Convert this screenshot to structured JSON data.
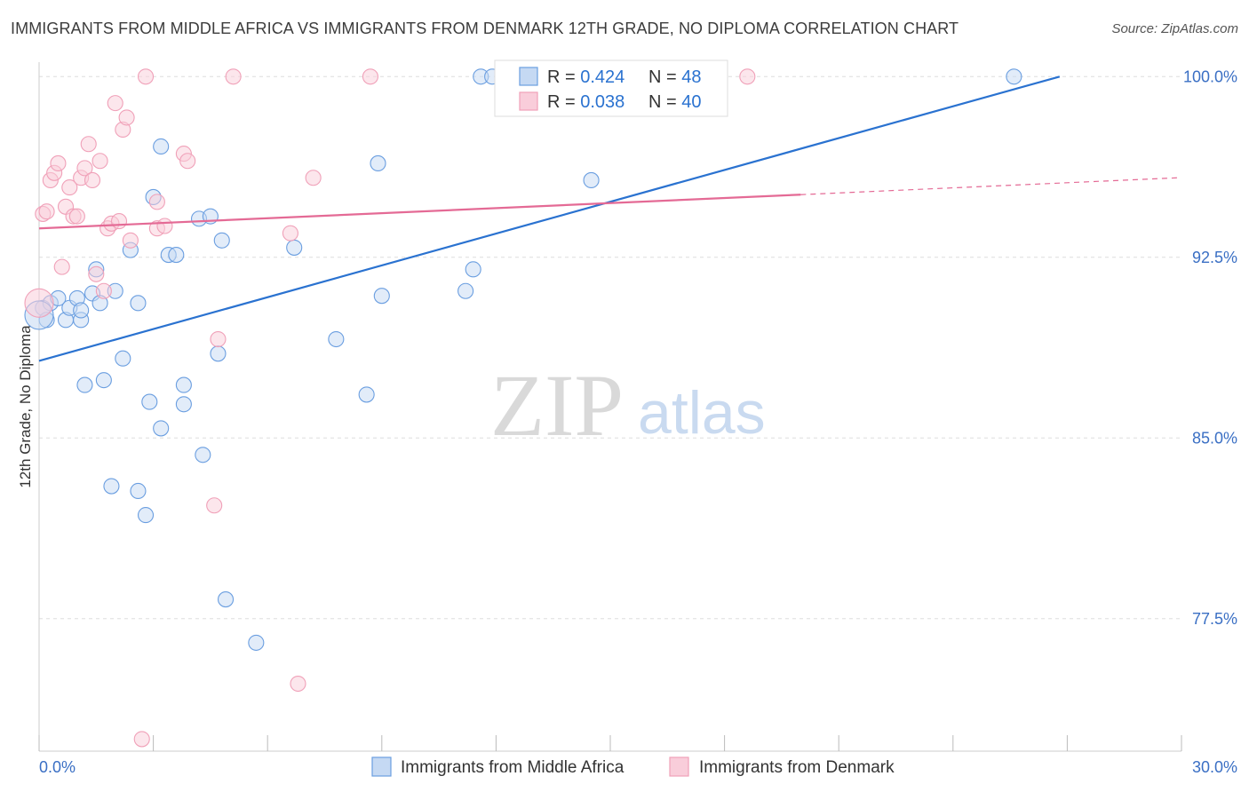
{
  "header": {
    "title": "IMMIGRANTS FROM MIDDLE AFRICA VS IMMIGRANTS FROM DENMARK 12TH GRADE, NO DIPLOMA CORRELATION CHART",
    "source": "Source: ZipAtlas.com"
  },
  "watermark": {
    "zip": "ZIP",
    "atlas": "atlas"
  },
  "chart_data": {
    "type": "scatter",
    "title": "IMMIGRANTS FROM MIDDLE AFRICA VS IMMIGRANTS FROM DENMARK 12TH GRADE, NO DIPLOMA CORRELATION CHART",
    "xlabel": "",
    "ylabel": "12th Grade, No Diploma",
    "xlim": [
      0,
      30
    ],
    "ylim": [
      72,
      100.6
    ],
    "x_tick_labels": [
      "0.0%",
      "30.0%"
    ],
    "y_ticks": [
      {
        "value": 100.0,
        "label": "100.0%"
      },
      {
        "value": 92.5,
        "label": "92.5%"
      },
      {
        "value": 85.0,
        "label": "85.0%"
      },
      {
        "value": 77.5,
        "label": "77.5%"
      }
    ],
    "legend_position": "top-center",
    "series": [
      {
        "name": "Immigrants from Middle Africa",
        "color": "#6a9ee0",
        "line_color": "#2a72d0",
        "R": "0.424",
        "N": "48",
        "trend": {
          "x0": 0,
          "y0": 88.2,
          "x1": 26.8,
          "y1": 100.0,
          "dashed_to": null
        },
        "points": [
          [
            0.1,
            90.4
          ],
          [
            0.2,
            89.9
          ],
          [
            0.3,
            90.6
          ],
          [
            0.5,
            90.8
          ],
          [
            0.7,
            89.9
          ],
          [
            0.8,
            90.4
          ],
          [
            1.0,
            90.8
          ],
          [
            1.1,
            89.9
          ],
          [
            1.1,
            90.3
          ],
          [
            1.4,
            91.0
          ],
          [
            1.5,
            92.0
          ],
          [
            1.6,
            90.6
          ],
          [
            1.2,
            87.2
          ],
          [
            1.7,
            87.4
          ],
          [
            1.9,
            83.0
          ],
          [
            2.0,
            91.1
          ],
          [
            2.2,
            88.3
          ],
          [
            2.4,
            92.8
          ],
          [
            2.6,
            90.6
          ],
          [
            2.6,
            82.8
          ],
          [
            2.8,
            81.8
          ],
          [
            2.9,
            86.5
          ],
          [
            3.0,
            95.0
          ],
          [
            3.2,
            85.4
          ],
          [
            3.2,
            97.1
          ],
          [
            3.4,
            92.6
          ],
          [
            3.6,
            92.6
          ],
          [
            3.8,
            86.4
          ],
          [
            3.8,
            87.2
          ],
          [
            4.2,
            94.1
          ],
          [
            4.3,
            84.3
          ],
          [
            4.5,
            94.2
          ],
          [
            4.7,
            88.5
          ],
          [
            4.8,
            93.2
          ],
          [
            4.9,
            78.3
          ],
          [
            5.7,
            76.5
          ],
          [
            6.7,
            92.9
          ],
          [
            7.8,
            89.1
          ],
          [
            8.6,
            86.8
          ],
          [
            8.9,
            96.4
          ],
          [
            9.0,
            90.9
          ],
          [
            11.2,
            91.1
          ],
          [
            11.4,
            92.0
          ],
          [
            11.6,
            100.0
          ],
          [
            11.9,
            100.0
          ],
          [
            14.5,
            95.7
          ],
          [
            25.6,
            100.0
          ],
          [
            0.0,
            90.1
          ]
        ]
      },
      {
        "name": "Immigrants from Denmark",
        "color": "#f0a0b8",
        "line_color": "#e46a95",
        "R": "0.038",
        "N": "40",
        "trend": {
          "x0": 0,
          "y0": 93.7,
          "x1": 20.0,
          "y1": 95.1,
          "dashed_to": {
            "x": 29.9,
            "y": 95.8
          }
        },
        "points": [
          [
            0.1,
            94.3
          ],
          [
            0.2,
            94.4
          ],
          [
            0.3,
            95.7
          ],
          [
            0.4,
            96.0
          ],
          [
            0.5,
            96.4
          ],
          [
            0.6,
            92.1
          ],
          [
            0.7,
            94.6
          ],
          [
            0.8,
            95.4
          ],
          [
            0.9,
            94.2
          ],
          [
            1.0,
            94.2
          ],
          [
            1.1,
            95.8
          ],
          [
            1.2,
            96.2
          ],
          [
            1.3,
            97.2
          ],
          [
            1.4,
            95.7
          ],
          [
            1.5,
            91.8
          ],
          [
            1.6,
            96.5
          ],
          [
            1.7,
            91.1
          ],
          [
            1.8,
            93.7
          ],
          [
            1.9,
            93.9
          ],
          [
            2.0,
            98.9
          ],
          [
            2.1,
            94.0
          ],
          [
            2.2,
            97.8
          ],
          [
            2.3,
            98.3
          ],
          [
            2.4,
            93.2
          ],
          [
            2.8,
            100.0
          ],
          [
            3.1,
            94.8
          ],
          [
            3.1,
            93.7
          ],
          [
            3.3,
            93.8
          ],
          [
            3.8,
            96.8
          ],
          [
            3.9,
            96.5
          ],
          [
            4.7,
            89.1
          ],
          [
            4.6,
            82.2
          ],
          [
            5.1,
            100.0
          ],
          [
            6.6,
            93.5
          ],
          [
            6.8,
            74.8
          ],
          [
            7.2,
            95.8
          ],
          [
            8.7,
            100.0
          ],
          [
            18.6,
            100.0
          ],
          [
            2.7,
            72.5
          ],
          [
            0.0,
            90.6
          ]
        ]
      }
    ]
  },
  "legend": {
    "rows": [
      {
        "r_label": "R = ",
        "r_value": "0.424",
        "n_label": "N = ",
        "n_value": "48"
      },
      {
        "r_label": "R = ",
        "r_value": "0.038",
        "n_label": "N = ",
        "n_value": "40"
      }
    ]
  },
  "bottom_legend": {
    "items": [
      {
        "label": "Immigrants from Middle Africa"
      },
      {
        "label": "Immigrants from Denmark"
      }
    ]
  },
  "colors": {
    "blue_fill": "#c5d9f3",
    "blue_stroke": "#6a9ee0",
    "blue_line": "#2a72d0",
    "pink_fill": "#f9cdda",
    "pink_stroke": "#f0a0b8",
    "pink_line": "#e46a95",
    "tick_text": "#3a6fc4",
    "grid": "#dddddd"
  }
}
